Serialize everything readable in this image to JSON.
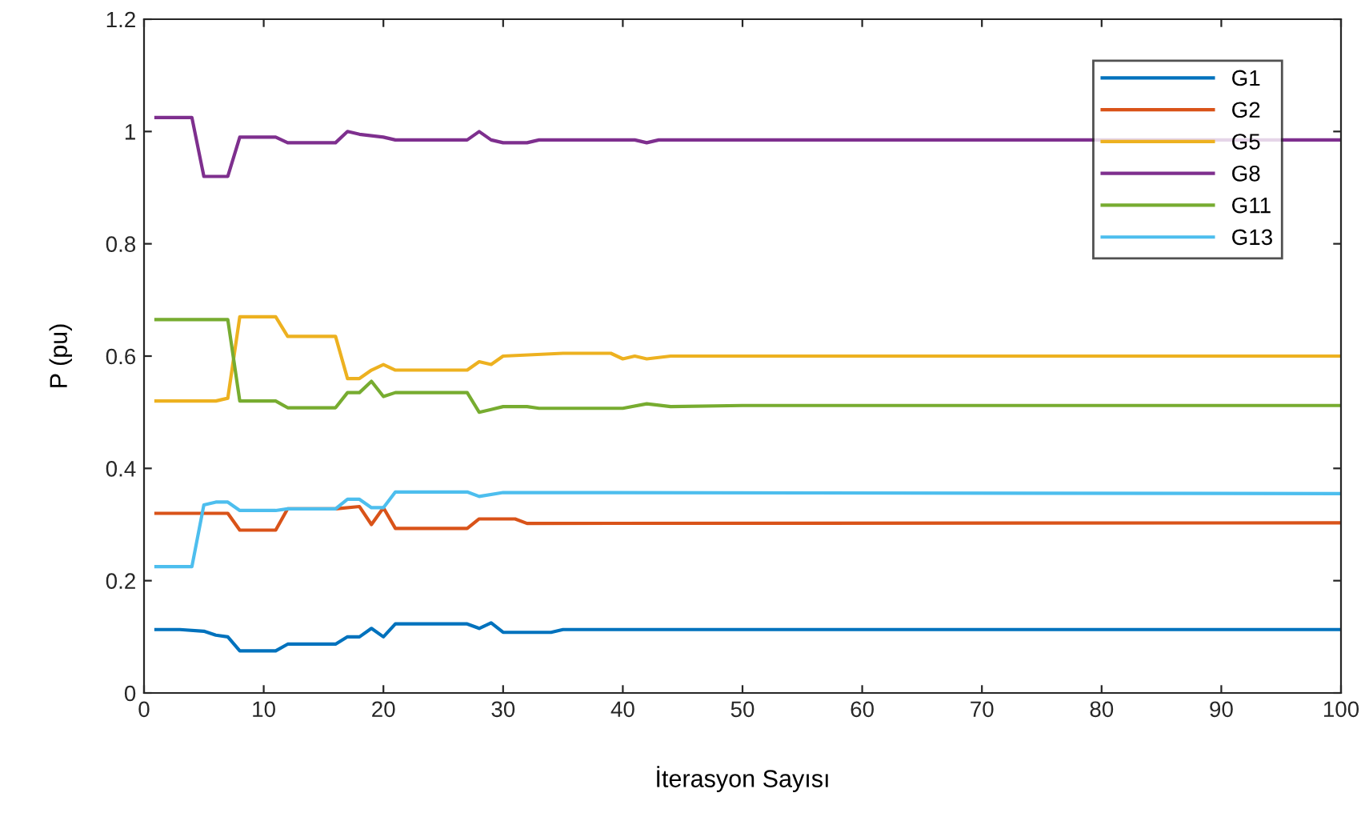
{
  "chart_data": {
    "type": "line",
    "xlabel": "İterasyon Sayısı",
    "ylabel": "P (pu)",
    "xlim": [
      0,
      100
    ],
    "ylim": [
      0,
      1.2
    ],
    "xticks": [
      0,
      10,
      20,
      30,
      40,
      50,
      60,
      70,
      80,
      90,
      100
    ],
    "yticks": [
      0,
      0.2,
      0.4,
      0.6,
      0.8,
      1,
      1.2
    ],
    "grid": false,
    "legend": "top right",
    "marker": "none",
    "line_style": "solid",
    "series": [
      {
        "name": "G1",
        "color": "#0072bd",
        "x": [
          1,
          3,
          5,
          6,
          7,
          8,
          11,
          12,
          16,
          17,
          18,
          19,
          20,
          21,
          27,
          28,
          29,
          30,
          34,
          35,
          100
        ],
        "values": [
          0.113,
          0.113,
          0.11,
          0.103,
          0.1,
          0.075,
          0.075,
          0.087,
          0.087,
          0.1,
          0.1,
          0.115,
          0.1,
          0.123,
          0.123,
          0.115,
          0.125,
          0.108,
          0.108,
          0.113,
          0.113
        ]
      },
      {
        "name": "G2",
        "color": "#d95319",
        "x": [
          1,
          7,
          8,
          11,
          12,
          16,
          18,
          19,
          20,
          21,
          27,
          28,
          31,
          32,
          100
        ],
        "values": [
          0.32,
          0.32,
          0.29,
          0.29,
          0.328,
          0.328,
          0.332,
          0.3,
          0.33,
          0.293,
          0.293,
          0.31,
          0.31,
          0.302,
          0.303
        ]
      },
      {
        "name": "G5",
        "color": "#edb120",
        "x": [
          1,
          6,
          7,
          8,
          11,
          12,
          16,
          17,
          18,
          19,
          20,
          21,
          27,
          28,
          29,
          30,
          35,
          39,
          40,
          41,
          42,
          44,
          100
        ],
        "values": [
          0.52,
          0.52,
          0.525,
          0.67,
          0.67,
          0.635,
          0.635,
          0.56,
          0.56,
          0.575,
          0.585,
          0.575,
          0.575,
          0.59,
          0.585,
          0.6,
          0.605,
          0.605,
          0.595,
          0.6,
          0.595,
          0.6,
          0.6
        ]
      },
      {
        "name": "G8",
        "color": "#7e2f8e",
        "x": [
          1,
          4,
          5,
          7,
          8,
          11,
          12,
          16,
          17,
          18,
          20,
          21,
          27,
          28,
          29,
          30,
          32,
          33,
          41,
          42,
          43,
          100
        ],
        "values": [
          1.025,
          1.025,
          0.92,
          0.92,
          0.99,
          0.99,
          0.98,
          0.98,
          1.0,
          0.995,
          0.99,
          0.985,
          0.985,
          1.0,
          0.985,
          0.98,
          0.98,
          0.985,
          0.985,
          0.98,
          0.985,
          0.985
        ]
      },
      {
        "name": "G11",
        "color": "#77ac30",
        "x": [
          1,
          7,
          8,
          11,
          12,
          16,
          17,
          18,
          19,
          20,
          21,
          27,
          28,
          29,
          30,
          32,
          33,
          40,
          42,
          44,
          50,
          100
        ],
        "values": [
          0.665,
          0.665,
          0.52,
          0.52,
          0.508,
          0.508,
          0.535,
          0.535,
          0.555,
          0.528,
          0.535,
          0.535,
          0.5,
          0.505,
          0.51,
          0.51,
          0.507,
          0.507,
          0.515,
          0.51,
          0.512,
          0.512
        ]
      },
      {
        "name": "G13",
        "color": "#4dbeee",
        "x": [
          1,
          4,
          5,
          6,
          7,
          8,
          11,
          12,
          16,
          17,
          18,
          19,
          20,
          21,
          27,
          28,
          30,
          100
        ],
        "values": [
          0.225,
          0.225,
          0.335,
          0.34,
          0.34,
          0.325,
          0.325,
          0.328,
          0.328,
          0.345,
          0.345,
          0.33,
          0.33,
          0.358,
          0.358,
          0.35,
          0.357,
          0.355
        ]
      }
    ]
  }
}
